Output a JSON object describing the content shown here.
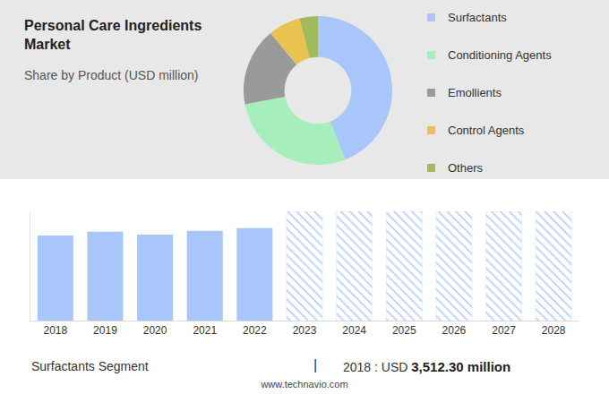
{
  "header": {
    "title": "Personal Care Ingredients Market",
    "subtitle": "Share by Product (USD million)"
  },
  "chart_data": [
    {
      "type": "pie",
      "categories": [
        "Surfactants",
        "Conditioning Agents",
        "Emollients",
        "Control Agents",
        "Others"
      ],
      "values": [
        3512.3,
        2235,
        1357,
        559,
        319
      ],
      "colors": [
        "#a9c6fa",
        "#a6efbc",
        "#9a9a9a",
        "#e9c24f",
        "#a0bb5c"
      ],
      "legend": "right"
    },
    {
      "type": "bar",
      "categories": [
        "2018",
        "2019",
        "2020",
        "2021",
        "2022",
        "2023",
        "2024",
        "2025",
        "2026",
        "2027",
        "2028"
      ],
      "values": [
        7982,
        8330,
        8070,
        8420,
        8680,
        null,
        null,
        null,
        null,
        null,
        null
      ],
      "color": "#a9c6fa",
      "ylim": [
        0,
        10250
      ],
      "yticks": [],
      "tick_labels": "x",
      "grid": false
    }
  ],
  "footer": {
    "label": "Surfactants Segment",
    "separator": "|",
    "value_prefix": "2018 : USD",
    "value": "3,512.30 million",
    "source": "www.technavio.com"
  }
}
